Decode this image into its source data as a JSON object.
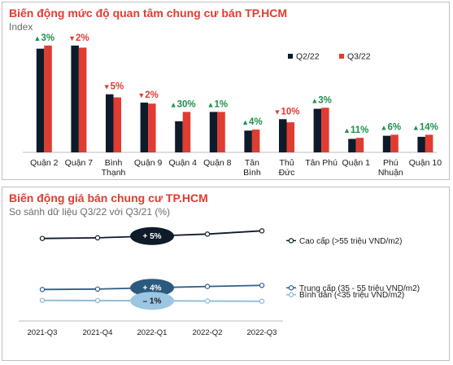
{
  "top": {
    "title": "Biến động mức độ quan tâm chung cư bán TP.HCM",
    "subtitle": "Index"
  },
  "bottom": {
    "title": "Biến động giá bán chung cư TP.HCM",
    "subtitle": "So sánh dữ liệu Q3/22 với Q3/21 (%)"
  },
  "chart_data": [
    {
      "type": "bar",
      "title": "Biến động mức độ quan tâm chung cư bán TP.HCM",
      "ylabel": "Index",
      "categories": [
        "Quận 2",
        "Quận 7",
        "Bình Thạnh",
        "Quận 9",
        "Quận 4",
        "Quận 8",
        "Tân Bình",
        "Thủ Đức",
        "Tân Phú",
        "Quận 1",
        "Phú Nhuận",
        "Quận 10"
      ],
      "category_lines": [
        [
          "Quận 2"
        ],
        [
          "Quận 7"
        ],
        [
          "Bình",
          "Thạnh"
        ],
        [
          "Quận 9"
        ],
        [
          "Quận 4"
        ],
        [
          "Quận 8"
        ],
        [
          "Tân",
          "Bình"
        ],
        [
          "Thủ",
          "Đức"
        ],
        [
          "Tân Phú"
        ],
        [
          "Quận 1"
        ],
        [
          "Phú",
          "Nhuận"
        ],
        [
          "Quận 10"
        ]
      ],
      "series": [
        {
          "name": "Q2/22",
          "color": "#0d1b2a",
          "values": [
            100,
            103,
            56,
            48,
            30,
            39,
            21,
            32,
            42,
            13,
            16,
            15
          ]
        },
        {
          "name": "Q3/22",
          "color": "#e03c31",
          "values": [
            103,
            101,
            53,
            47,
            39,
            39,
            22,
            29,
            43,
            14,
            17,
            17
          ]
        }
      ],
      "changes": [
        {
          "text": "3%",
          "dir": "up"
        },
        {
          "text": "2%",
          "dir": "down"
        },
        {
          "text": "5%",
          "dir": "down"
        },
        {
          "text": "2%",
          "dir": "down"
        },
        {
          "text": "30%",
          "dir": "up"
        },
        {
          "text": "1%",
          "dir": "up"
        },
        {
          "text": "4%",
          "dir": "up"
        },
        {
          "text": "10%",
          "dir": "down"
        },
        {
          "text": "3%",
          "dir": "up"
        },
        {
          "text": "11%",
          "dir": "up"
        },
        {
          "text": "6%",
          "dir": "up"
        },
        {
          "text": "14%",
          "dir": "up"
        }
      ],
      "ylim": [
        0,
        110
      ],
      "legend_position": "top-right",
      "grid": false,
      "up_color": "#1e8f4e",
      "down_color": "#e03c31"
    },
    {
      "type": "line",
      "title": "Biến động giá bán chung cư TP.HCM",
      "subtitle": "So sánh dữ liệu Q3/22 với Q3/21 (%)",
      "x": [
        "2021-Q3",
        "2021-Q4",
        "2022-Q1",
        "2022-Q2",
        "2022-Q3"
      ],
      "series": [
        {
          "name": "Cao cấp (>55 triệu VND/m2)",
          "color": "#0d1b2a",
          "values": [
            66.5,
            66.8,
            67.6,
            68.5,
            70.0
          ],
          "change": "+ 5%",
          "bubble_color": "#0d1b2a"
        },
        {
          "name": "Trung cấp (35 - 55 triệu VND/m2)",
          "color": "#2f5f86",
          "values": [
            43.0,
            43.2,
            43.8,
            44.4,
            44.9
          ],
          "change": "+ 4%",
          "bubble_color": "#2c5a7f"
        },
        {
          "name": "Bình dân (<35 triệu VND/m2)",
          "color": "#8ab8d8",
          "values": [
            38.0,
            37.9,
            37.8,
            37.7,
            37.6
          ],
          "change": "– 1%",
          "bubble_color": "#9cc6e2"
        }
      ],
      "ylim": [
        30,
        75
      ],
      "legend_position": "right",
      "grid": false
    }
  ]
}
